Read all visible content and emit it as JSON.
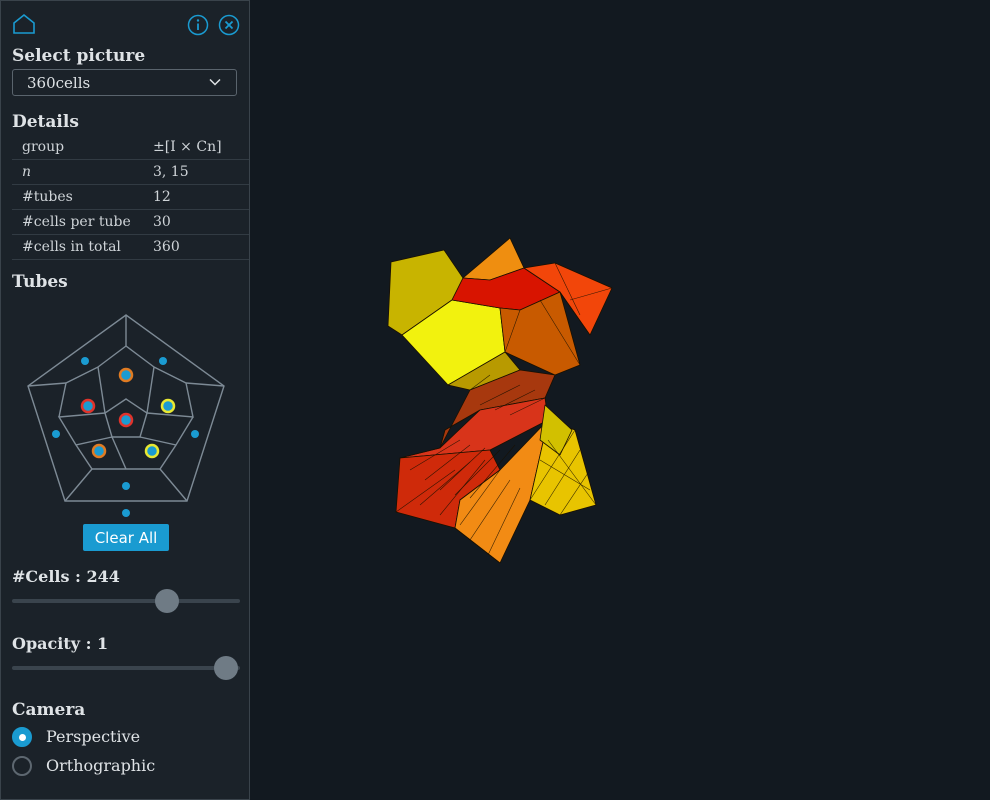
{
  "sidebar": {
    "select_title": "Select picture",
    "selected_picture": "360cells",
    "details_title": "Details",
    "details": [
      {
        "key": "group",
        "value": "±[I × Cn]"
      },
      {
        "key": "n",
        "value": "3, 15"
      },
      {
        "key": "#tubes",
        "value": "12"
      },
      {
        "key": "#cells per tube",
        "value": "30"
      },
      {
        "key": "#cells in total",
        "value": "360"
      }
    ],
    "tubes_title": "Tubes",
    "clear_all_label": "Clear All",
    "cells_label": "#Cells : 244",
    "cells_value": 244,
    "cells_max": 360,
    "opacity_label": "Opacity : 1",
    "opacity_value": 1,
    "camera_title": "Camera",
    "camera_options": [
      "Perspective",
      "Orthographic"
    ],
    "camera_selected": "Perspective"
  },
  "colors": {
    "accent": "#1a9bd1",
    "background": "#121920",
    "panel": "#1b2229",
    "tube_orange": "#e07b22",
    "tube_red": "#e0332b",
    "tube_yellow": "#e8e832"
  },
  "icons": [
    "home-icon",
    "info-icon",
    "close-icon",
    "chevron-down-icon"
  ]
}
